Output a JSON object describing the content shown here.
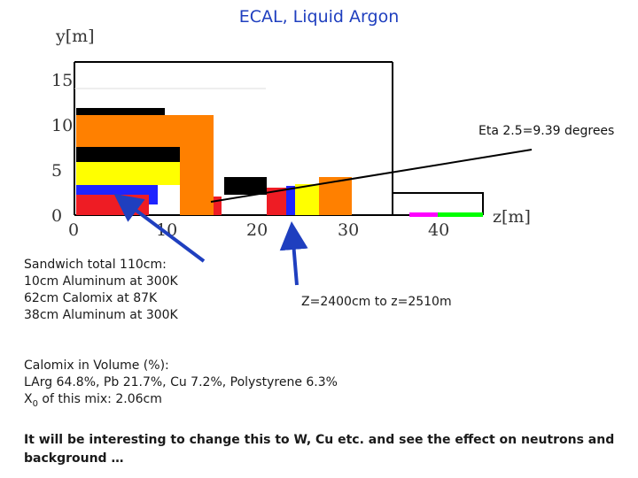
{
  "title": "ECAL, Liquid Argon",
  "axes": {
    "y_label": "y[m]",
    "x_label": "z[m]",
    "y_ticks": [
      "0",
      "5",
      "10",
      "15"
    ],
    "x_ticks": [
      "0",
      "10",
      "20",
      "30",
      "40"
    ]
  },
  "eta_label": "Eta 2.5=9.39 degrees",
  "sandwich_note": {
    "lines": [
      "Sandwich total 110cm:",
      "10cm Aluminum at 300K",
      "62cm Calomix at 87K",
      "38cm Aluminum at 300K"
    ]
  },
  "z_range_note": "Z=2400cm to z=2510m",
  "calomix_note": {
    "line1": "Calomix in Volume (%):",
    "line2": "LArg 64.8%, Pb 21.7%, Cu 7.2%, Polystyrene 6.3%",
    "line3_prefix": "X",
    "line3_sub": "0",
    "line3_suffix": " of this mix: 2.06cm"
  },
  "conclusion": "It will be interesting to change this to W, Cu etc. and see the effect on neutrons and background …",
  "colors": {
    "red": "#ee1c24",
    "yellow": "#ffff00",
    "orange": "#ff8000",
    "blue": "#1e24ff",
    "black": "#000000",
    "magenta": "#ff00ff",
    "green": "#00ff00",
    "arrow": "#1f3fbf"
  }
}
